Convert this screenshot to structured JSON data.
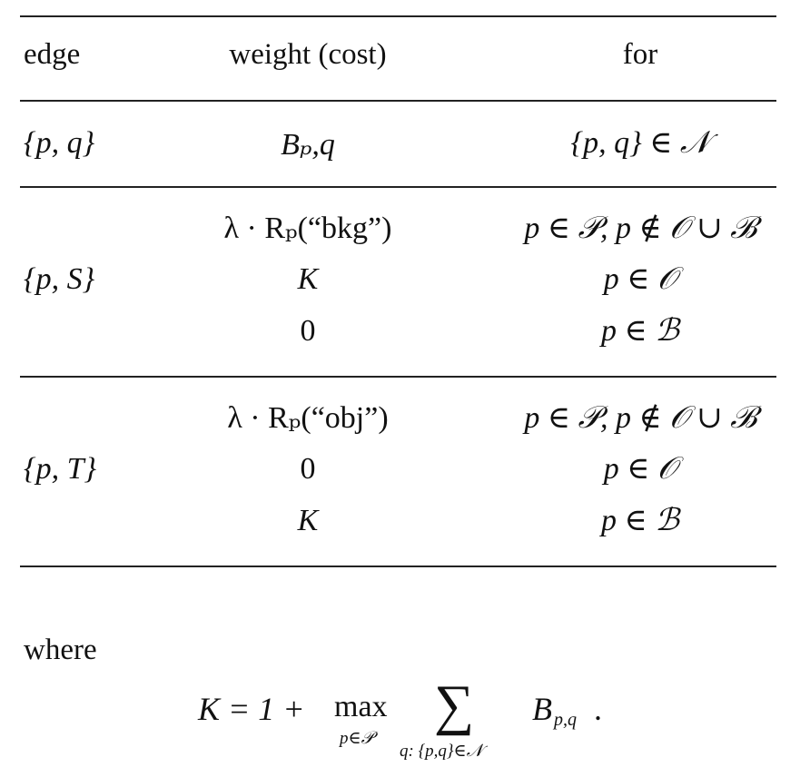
{
  "table": {
    "headers": [
      "edge",
      "weight (cost)",
      "for"
    ],
    "groups": [
      {
        "edge": "{p, q}",
        "rows": [
          {
            "weight": "Bₚ,q",
            "for": "{p, q} ∈ 𝒩"
          }
        ]
      },
      {
        "edge": "{p, S}",
        "rows": [
          {
            "weight": "λ · Rₚ(“bkg”)",
            "for": "p ∈ 𝒫,  p ∉ 𝒪 ∪ ℬ"
          },
          {
            "weight": "K",
            "for": "p ∈ 𝒪"
          },
          {
            "weight": "0",
            "for": "p ∈ ℬ"
          }
        ]
      },
      {
        "edge": "{p, T}",
        "rows": [
          {
            "weight": "λ · Rₚ(“obj”)",
            "for": "p ∈ 𝒫,  p ∉ 𝒪 ∪ ℬ"
          },
          {
            "weight": "0",
            "for": "p ∈ 𝒪"
          },
          {
            "weight": "K",
            "for": "p ∈ ℬ"
          }
        ]
      }
    ]
  },
  "where_text": "where",
  "formula": {
    "lhs": "K = 1 +",
    "max_op": "max",
    "max_sub": "p∈𝒫",
    "sum_op": "∑",
    "sum_sub": "q: {p,q}∈𝒩",
    "term": "B",
    "term_sub": "p,q",
    "end": "."
  }
}
